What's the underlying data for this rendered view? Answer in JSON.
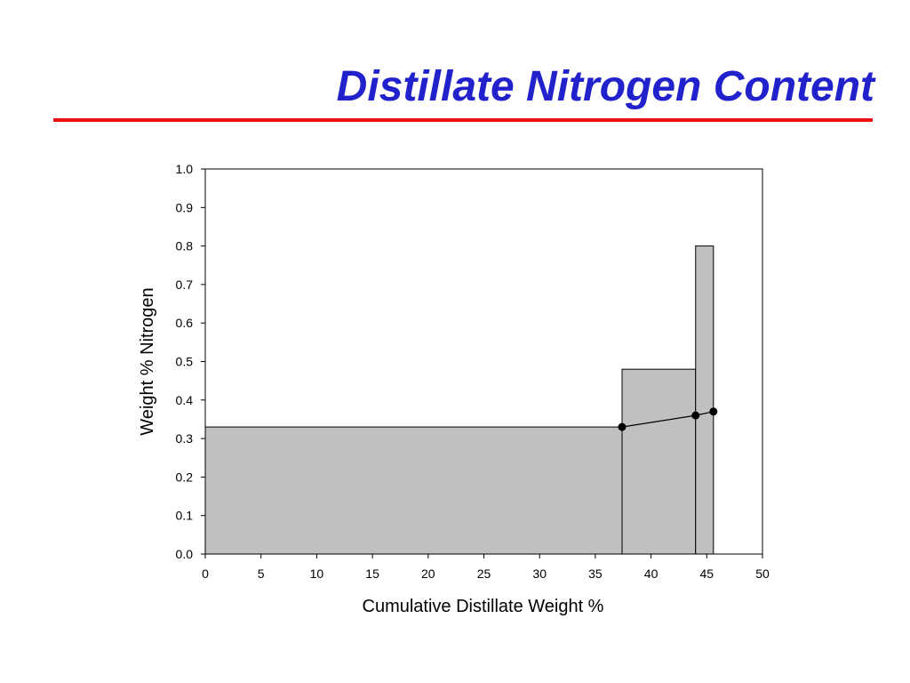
{
  "slide": {
    "title": "Distillate Nitrogen Content",
    "rule_color": "#ee1111",
    "title_color": "#2222cc"
  },
  "chart_data": {
    "type": "bar",
    "xlabel": "Cumulative Distillate Weight %",
    "ylabel": "Weight % Nitrogen",
    "xlim": [
      0,
      50
    ],
    "ylim": [
      0,
      1.0
    ],
    "xticks": [
      "0",
      "5",
      "10",
      "15",
      "20",
      "25",
      "30",
      "35",
      "40",
      "45",
      "50"
    ],
    "yticks": [
      "0.0",
      "0.1",
      "0.2",
      "0.3",
      "0.4",
      "0.5",
      "0.6",
      "0.7",
      "0.8",
      "0.9",
      "1.0"
    ],
    "bars": [
      {
        "x_start": 0,
        "x_end": 37.4,
        "value": 0.33
      },
      {
        "x_start": 37.4,
        "x_end": 44.0,
        "value": 0.48
      },
      {
        "x_start": 44.0,
        "x_end": 45.6,
        "value": 0.8
      }
    ],
    "series": [
      {
        "type": "line",
        "points": [
          [
            37.4,
            0.33
          ],
          [
            44.0,
            0.36
          ],
          [
            45.6,
            0.37
          ]
        ]
      }
    ],
    "bar_color": "#c0c0c0",
    "grid": false
  }
}
